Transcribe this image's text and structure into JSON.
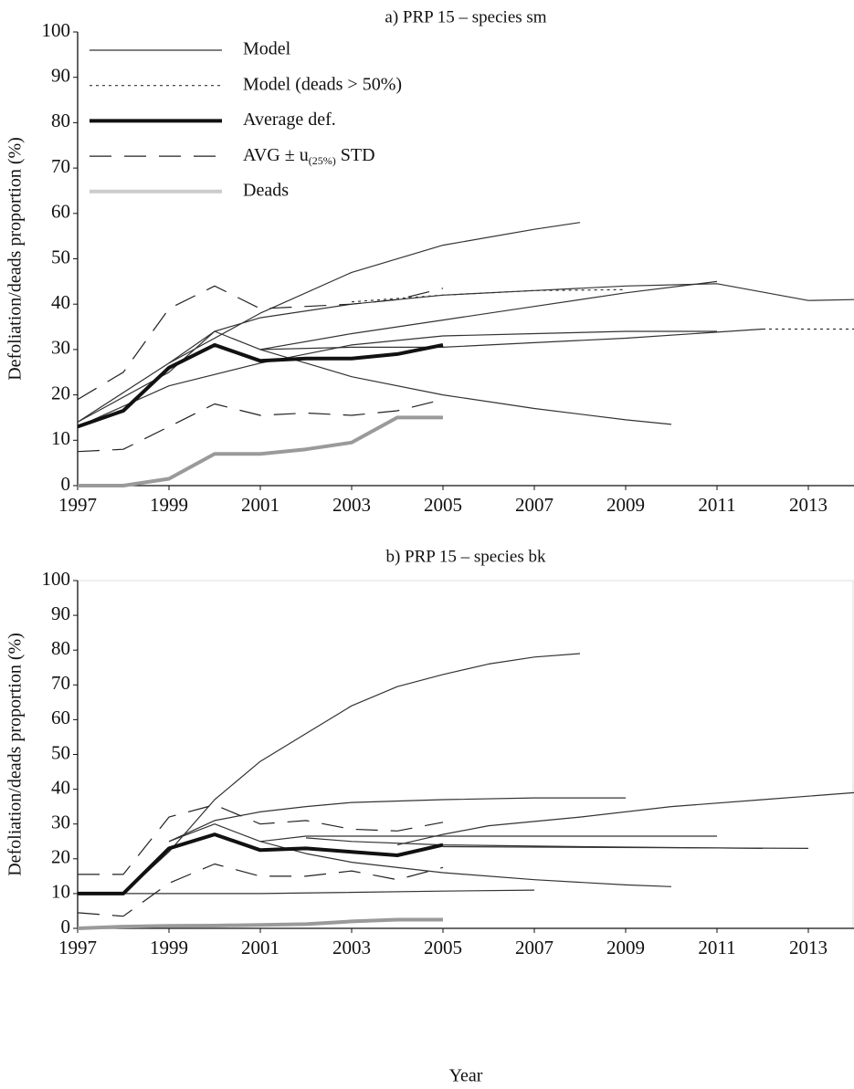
{
  "chart_data": [
    {
      "type": "line",
      "title": "a) PRP 15 – species sm",
      "y_label": "Defoliation/deads proportion (%)",
      "xlim": [
        1997,
        2014
      ],
      "xticks": [
        1997,
        1999,
        2001,
        2003,
        2005,
        2007,
        2009,
        2011,
        2013
      ],
      "ylim": [
        0,
        100
      ],
      "yticks": [
        0,
        10,
        20,
        30,
        40,
        50,
        60,
        70,
        80,
        90,
        100
      ],
      "frame": false,
      "series": [
        {
          "name": "Model",
          "color": "#333333",
          "width": 1.2,
          "dash": "solid",
          "lines": [
            {
              "x": [
                1997,
                1999,
                2001,
                2003,
                2005,
                2007,
                2008
              ],
              "values": [
                14,
                27,
                38,
                47,
                53,
                56.5,
                58
              ]
            },
            {
              "x": [
                2001,
                2003,
                2005,
                2007,
                2009,
                2011
              ],
              "values": [
                30,
                33.5,
                36.5,
                39.5,
                42.5,
                45
              ]
            },
            {
              "x": [
                1999,
                2000,
                2001,
                2003,
                2005,
                2007,
                2009,
                2011,
                2013,
                2014
              ],
              "values": [
                27,
                34,
                37,
                40,
                42,
                43,
                44,
                44.5,
                40.8,
                41
              ]
            },
            {
              "x": [
                1997,
                1999,
                2000,
                2001,
                2003,
                2005,
                2007,
                2009,
                2010
              ],
              "values": [
                14,
                25,
                34,
                30,
                24,
                20,
                17,
                14.5,
                13.5
              ]
            },
            {
              "x": [
                1997,
                1999,
                2001,
                2003,
                2005,
                2007,
                2009,
                2011
              ],
              "values": [
                13,
                22,
                27,
                31,
                33,
                33.5,
                34,
                34
              ]
            },
            {
              "x": [
                2001,
                2003,
                2005,
                2007,
                2009,
                2012
              ],
              "values": [
                30,
                30.5,
                30.5,
                31.5,
                32.5,
                34.5
              ]
            }
          ]
        },
        {
          "name": "Model (deads > 50%)",
          "color": "#333333",
          "width": 1.2,
          "dash": "dotted",
          "lines": [
            {
              "x": [
                2003,
                2005,
                2007,
                2009
              ],
              "values": [
                40.5,
                42,
                43,
                43.2
              ]
            },
            {
              "x": [
                2012,
                2014
              ],
              "values": [
                34.5,
                34.5
              ]
            }
          ]
        },
        {
          "name": "Average def.",
          "color": "#111111",
          "width": 4,
          "dash": "solid",
          "lines": [
            {
              "x": [
                1997,
                1998,
                1999,
                2000,
                2001,
                2002,
                2003,
                2004,
                2005
              ],
              "values": [
                13,
                16.5,
                26,
                31,
                27.5,
                28,
                28,
                29,
                31
              ]
            }
          ]
        },
        {
          "name": [
            "AVG ± u",
            "(25%)",
            "STD"
          ],
          "color": "#222222",
          "width": 1.2,
          "dash": "dashed",
          "lines": [
            {
              "x": [
                1997,
                1998,
                1999,
                2000,
                2001,
                2002,
                2003,
                2004,
                2005
              ],
              "values": [
                19,
                25,
                39,
                44,
                39,
                39.5,
                40,
                41,
                43.5
              ]
            },
            {
              "x": [
                1997,
                1998,
                1999,
                2000,
                2001,
                2002,
                2003,
                2004,
                2005
              ],
              "values": [
                7.5,
                8,
                13,
                18,
                15.5,
                16,
                15.5,
                16.5,
                19
              ]
            }
          ]
        },
        {
          "name": "Deads",
          "color": "#9a9a9a",
          "width": 4,
          "dash": "solid",
          "lines": [
            {
              "x": [
                1997,
                1998,
                1999,
                2000,
                2001,
                2002,
                2003,
                2004,
                2005
              ],
              "values": [
                0,
                0,
                1.5,
                7,
                7,
                8,
                9.5,
                15,
                15
              ]
            }
          ]
        }
      ]
    },
    {
      "type": "line",
      "title": "b) PRP 15 – species bk",
      "y_label": "Defoliation/deads proportion (%)",
      "x_label": "Year",
      "xlim": [
        1997,
        2014
      ],
      "xticks": [
        1997,
        1999,
        2001,
        2003,
        2005,
        2007,
        2009,
        2011,
        2013
      ],
      "ylim": [
        0,
        100
      ],
      "yticks": [
        0,
        10,
        20,
        30,
        40,
        50,
        60,
        70,
        80,
        90,
        100
      ],
      "frame": true,
      "series": [
        {
          "color": "#333333",
          "width": 1.2,
          "dash": "solid",
          "lines": [
            {
              "x": [
                1997,
                1998,
                1999,
                2000,
                2001,
                2002,
                2003,
                2004,
                2005,
                2006,
                2007,
                2008
              ],
              "values": [
                10,
                10,
                22,
                37,
                48,
                56,
                64,
                69.5,
                73,
                76,
                78,
                79
              ]
            },
            {
              "x": [
                1999,
                2000,
                2001,
                2002,
                2003,
                2005,
                2007,
                2009
              ],
              "values": [
                25,
                31,
                33.5,
                35,
                36.2,
                37,
                37.5,
                37.5
              ]
            },
            {
              "x": [
                2004,
                2005,
                2006,
                2008,
                2010,
                2012,
                2014
              ],
              "values": [
                24,
                27,
                29.5,
                32,
                35,
                37,
                39
              ]
            },
            {
              "x": [
                2001,
                2002,
                2005,
                2011
              ],
              "values": [
                25,
                26.5,
                26.5,
                26.5
              ]
            },
            {
              "x": [
                2002,
                2003,
                2005,
                2008,
                2012
              ],
              "values": [
                26,
                25,
                24,
                23.5,
                23
              ]
            },
            {
              "x": [
                2005,
                2013
              ],
              "values": [
                23.5,
                23
              ]
            },
            {
              "x": [
                1999,
                2000,
                2001,
                2002,
                2003,
                2005,
                2007,
                2009,
                2010
              ],
              "values": [
                25,
                30,
                25,
                21.5,
                19,
                16,
                14,
                12.5,
                12
              ]
            },
            {
              "x": [
                1997,
                2001,
                2005,
                2007
              ],
              "values": [
                10,
                10,
                10.7,
                11
              ]
            }
          ]
        },
        {
          "color": "#111111",
          "width": 4,
          "dash": "solid",
          "lines": [
            {
              "x": [
                1997,
                1998,
                1999,
                2000,
                2001,
                2002,
                2003,
                2004,
                2005
              ],
              "values": [
                10,
                10,
                23,
                27,
                22.5,
                23,
                22,
                21,
                24
              ]
            }
          ]
        },
        {
          "color": "#222222",
          "width": 1.2,
          "dash": "dashed",
          "lines": [
            {
              "x": [
                1997,
                1998,
                1999,
                2000,
                2001,
                2002,
                2003,
                2004,
                2005
              ],
              "values": [
                15.5,
                15.5,
                32,
                35.5,
                30,
                31,
                28.5,
                28,
                30.5
              ]
            },
            {
              "x": [
                1997,
                1998,
                1999,
                2000,
                2001,
                2002,
                2003,
                2004,
                2005
              ],
              "values": [
                4.5,
                3.5,
                13,
                18.5,
                15,
                15,
                16.5,
                14,
                17.5
              ]
            }
          ]
        },
        {
          "color": "#9a9a9a",
          "width": 4,
          "dash": "solid",
          "lines": [
            {
              "x": [
                1997,
                1998,
                1999,
                2000,
                2001,
                2002,
                2003,
                2004,
                2005
              ],
              "values": [
                0,
                0.5,
                0.7,
                0.8,
                1,
                1.2,
                2,
                2.5,
                2.5
              ]
            }
          ]
        }
      ]
    }
  ]
}
